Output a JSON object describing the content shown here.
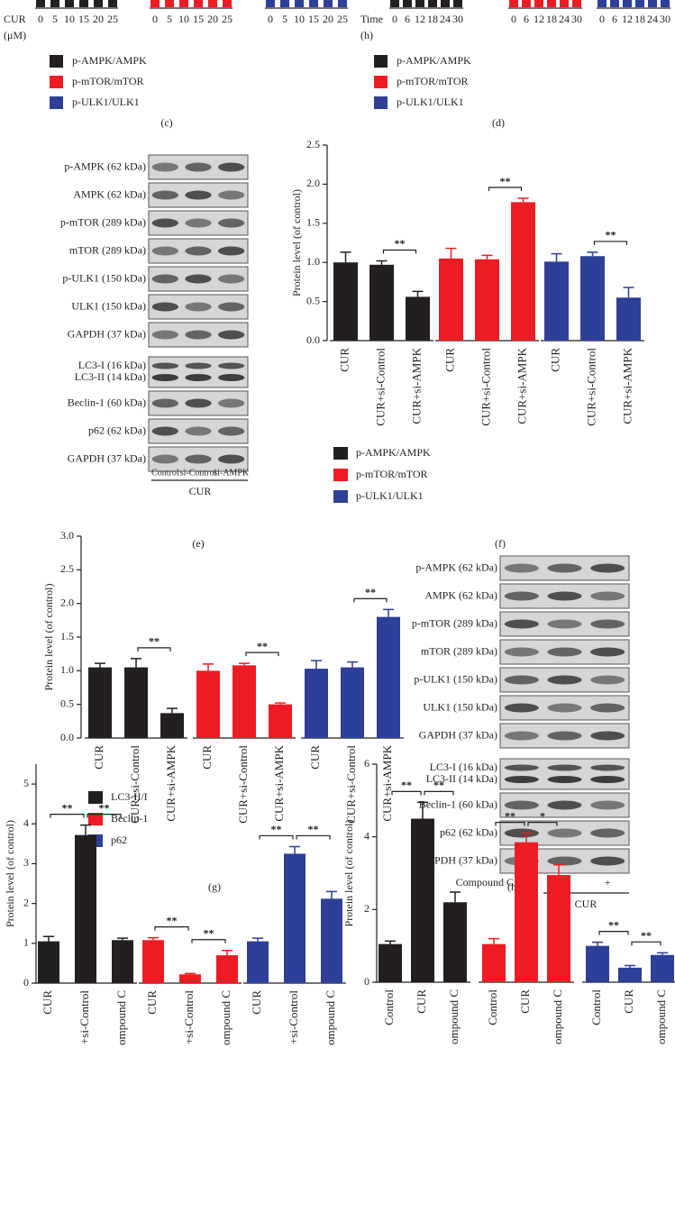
{
  "top": {
    "left": {
      "axis_label": "CUR",
      "unit": "(μM)",
      "groups": [
        [
          "0",
          "5",
          "10",
          "15",
          "20",
          "25"
        ],
        [
          "0",
          "5",
          "10",
          "15",
          "20",
          "25"
        ],
        [
          "0",
          "5",
          "10",
          "15",
          "20",
          "25"
        ]
      ]
    },
    "right": {
      "axis_label": "Time",
      "unit": "(h)",
      "groups": [
        [
          "0",
          "6",
          "12",
          "18",
          "24",
          "30"
        ],
        [
          "0",
          "6",
          "12",
          "18",
          "24",
          "30"
        ],
        [
          "0",
          "6",
          "12",
          "18",
          "24",
          "30"
        ]
      ]
    }
  },
  "legends": {
    "c": {
      "items": [
        "p-AMPK/AMPK",
        "p-mTOR/mTOR",
        "p-ULK1/ULK1"
      ],
      "colors": [
        "#231f20",
        "#ed1c24",
        "#2e3f98"
      ],
      "label": "(c)"
    },
    "d": {
      "items": [
        "p-AMPK/AMPK",
        "p-mTOR/mTOR",
        "p-ULK1/ULK1"
      ],
      "colors": [
        "#231f20",
        "#ed1c24",
        "#2e3f98"
      ],
      "label": "(d)"
    }
  },
  "blot_e": {
    "blocks": [
      [
        [
          "p-AMPK (62 kDa)"
        ],
        [
          "AMPK (62 kDa)"
        ],
        [
          "p-mTOR (289 kDa)"
        ],
        [
          "mTOR (289 kDa)"
        ],
        [
          "p-ULK1 (150 kDa)"
        ],
        [
          "ULK1 (150 kDa)"
        ],
        [
          "GAPDH (37 kDa)"
        ]
      ],
      [
        [
          "LC3-I (16 kDa)",
          "LC3-II (14 kDa)"
        ],
        [
          "Beclin-1 (60 kDa)"
        ],
        [
          "p62 (62 kDa)"
        ],
        [
          "GAPDH (37 kDa)"
        ]
      ]
    ],
    "lanes": [
      "Control",
      "si-Control",
      "si-AMPK"
    ],
    "treatment": "CUR",
    "label": "(e)"
  },
  "blot_h": {
    "blocks": [
      [
        [
          "p-AMPK (62 kDa)"
        ],
        [
          "AMPK (62 kDa)"
        ],
        [
          "p-mTOR (289 kDa)"
        ],
        [
          "mTOR (289 kDa)"
        ],
        [
          "p-ULK1 (150 kDa)"
        ],
        [
          "ULK1 (150 kDa)"
        ],
        [
          "GAPDH (37 kDa)"
        ]
      ],
      [
        [
          "LC3-I (16 kDa)",
          "LC3-II (14 kDa)"
        ],
        [
          "Beclin-1 (60 kDa)"
        ],
        [
          "p62 (62 kDa)"
        ],
        [
          "GAPDH (37 kDa)"
        ]
      ]
    ],
    "lanes_label": "Compound C",
    "lanes": [
      "–",
      "–",
      "+"
    ],
    "treatment": "CUR",
    "label": "(h)"
  },
  "chart_data": [
    {
      "type": "bar",
      "panel_label": "(f)",
      "ylabel": "Protein level (of control)",
      "categories": [
        "CUR",
        "CUR+si-Control",
        "CUR+si-AMPK"
      ],
      "series": [
        {
          "name": "p-AMPK/AMPK",
          "color": "#231f20",
          "values": [
            1.0,
            0.97,
            0.56
          ],
          "errors": [
            0.13,
            0.05,
            0.07
          ]
        },
        {
          "name": "p-mTOR/mTOR",
          "color": "#ed1c24",
          "values": [
            1.05,
            1.04,
            1.77
          ],
          "errors": [
            0.13,
            0.05,
            0.05
          ]
        },
        {
          "name": "p-ULK1/ULK1",
          "color": "#2e3f98",
          "values": [
            1.01,
            1.08,
            0.55
          ],
          "errors": [
            0.1,
            0.05,
            0.13
          ]
        }
      ],
      "ylim": [
        0,
        2.5
      ],
      "yticks": [
        {
          "value": 0,
          "label": "0.0"
        },
        0.5,
        {
          "value": 1,
          "label": "1.0"
        },
        1.5,
        {
          "value": 2,
          "label": "2.0"
        },
        2.5
      ],
      "annotations": [
        {
          "text": "**",
          "series": 0,
          "between": [
            1,
            2
          ]
        },
        {
          "text": "**",
          "series": 1,
          "between": [
            1,
            2
          ]
        },
        {
          "text": "**",
          "series": 2,
          "between": [
            1,
            2
          ]
        }
      ]
    },
    {
      "type": "bar",
      "panel_label": "(g)",
      "ylabel": "Protein level (of control)",
      "categories": [
        "CUR",
        "CUR+si-Control",
        "CUR+si-AMPK"
      ],
      "series": [
        {
          "name": "LC3-II/I",
          "color": "#231f20",
          "values": [
            1.05,
            1.05,
            0.37
          ],
          "errors": [
            0.06,
            0.13,
            0.07
          ]
        },
        {
          "name": "Beclin-1",
          "color": "#ed1c24",
          "values": [
            1.0,
            1.08,
            0.5
          ],
          "errors": [
            0.1,
            0.03,
            0.02
          ]
        },
        {
          "name": "p62",
          "color": "#2e3f98",
          "values": [
            1.03,
            1.05,
            1.8
          ],
          "errors": [
            0.12,
            0.08,
            0.11
          ]
        }
      ],
      "ylim": [
        0,
        3
      ],
      "yticks": [
        {
          "value": 0,
          "label": "0.0"
        },
        0.5,
        {
          "value": 1,
          "label": "1.0"
        },
        1.5,
        {
          "value": 2,
          "label": "2.0"
        },
        2.5,
        {
          "value": 3,
          "label": "3.0"
        }
      ],
      "annotations": [
        {
          "text": "**",
          "series": 0,
          "between": [
            1,
            2
          ]
        },
        {
          "text": "**",
          "series": 1,
          "between": [
            1,
            2
          ]
        },
        {
          "text": "**",
          "series": 2,
          "between": [
            1,
            2
          ]
        }
      ]
    },
    {
      "type": "bar",
      "ylabel": "Protein level (of control)",
      "categories": [
        "CUR",
        "+si-Control",
        "ompound C"
      ],
      "series": [
        {
          "color": "#231f20",
          "values": [
            1.05,
            3.72,
            1.08
          ],
          "errors": [
            0.12,
            0.25,
            0.05
          ]
        },
        {
          "color": "#ed1c24",
          "values": [
            1.08,
            0.22,
            0.7
          ],
          "errors": [
            0.06,
            0.02,
            0.12
          ]
        },
        {
          "color": "#2e3f98",
          "values": [
            1.05,
            3.25,
            2.12
          ],
          "errors": [
            0.08,
            0.18,
            0.18
          ]
        }
      ],
      "ylim": [
        0,
        5.5
      ],
      "yticks": [
        0,
        1,
        2,
        3,
        4,
        5
      ],
      "annotations": [
        {
          "text": "**",
          "series": 0,
          "between": [
            0,
            1
          ]
        },
        {
          "text": "**",
          "series": 0,
          "between": [
            1,
            2
          ]
        },
        {
          "text": "**",
          "series": 1,
          "between": [
            0,
            1
          ]
        },
        {
          "text": "**",
          "series": 1,
          "between": [
            1,
            2
          ]
        },
        {
          "text": "**",
          "series": 2,
          "between": [
            0,
            1
          ]
        },
        {
          "text": "**",
          "series": 2,
          "between": [
            1,
            2
          ]
        }
      ]
    },
    {
      "type": "bar",
      "ylabel": "Protein level (of control)",
      "categories": [
        "Control",
        "CUR",
        "ompound C"
      ],
      "series": [
        {
          "color": "#231f20",
          "values": [
            1.05,
            4.5,
            2.2
          ],
          "errors": [
            0.08,
            0.45,
            0.28
          ]
        },
        {
          "color": "#ed1c24",
          "values": [
            1.05,
            3.85,
            2.95
          ],
          "errors": [
            0.15,
            0.25,
            0.28
          ]
        },
        {
          "color": "#2e3f98",
          "values": [
            1.0,
            0.4,
            0.75
          ],
          "errors": [
            0.1,
            0.06,
            0.06
          ]
        }
      ],
      "ylim": [
        0,
        6
      ],
      "yticks": [
        0,
        2,
        4,
        6
      ],
      "annotations": [
        {
          "text": "**",
          "series": 0,
          "between": [
            0,
            1
          ]
        },
        {
          "text": "**",
          "series": 0,
          "between": [
            1,
            2
          ]
        },
        {
          "text": "**",
          "series": 1,
          "between": [
            0,
            1
          ]
        },
        {
          "text": "*",
          "series": 1,
          "between": [
            1,
            2
          ]
        },
        {
          "text": "**",
          "series": 2,
          "between": [
            0,
            1
          ]
        },
        {
          "text": "**",
          "series": 2,
          "between": [
            1,
            2
          ]
        }
      ]
    }
  ]
}
